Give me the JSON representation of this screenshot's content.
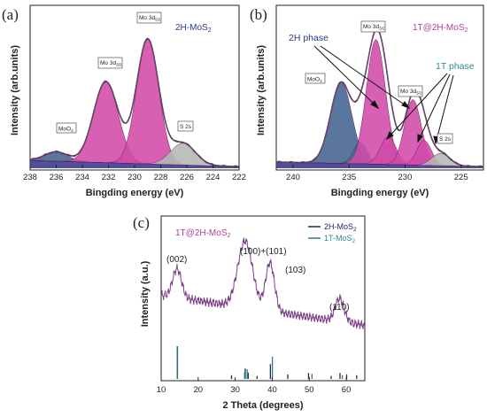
{
  "colors": {
    "curve": "#7f3f83",
    "mo3d_fill": "#d24aa8",
    "mo3d_edge": "#6a1d64",
    "s2s_fill": "#b3b8b3",
    "moo3_fill": "#44638f",
    "t1_fill": "#2d7893",
    "bg_fill": "#3b3b8f",
    "fit_line": "#444444",
    "xrd_curve": "#7c3f8a",
    "stick_2h": "#1a2a5a",
    "stick_1t": "#2f7d7d",
    "label_2h": "#1a2a6a",
    "label_1t": "#2f8a8a",
    "label_hybrid": "#b0409a"
  },
  "panels": {
    "a": {
      "letter": "(a)",
      "sample": "2H-MoS",
      "sample_sub": "2",
      "xlabel": "Bingding energy (eV)",
      "ylabel": "Intensity (arb.units)"
    },
    "b": {
      "letter": "(b)",
      "sample": "1T@2H-MoS",
      "sample_sub": "2",
      "xlabel": "Bingding energy (eV)",
      "ylabel": "Intensity (arb.units)",
      "phase_2h": "2H phase",
      "phase_1t": "1T phase"
    },
    "c": {
      "letter": "(c)",
      "sample": "1T@2H-MoS",
      "sample_sub": "2",
      "xlabel": "2 Theta (degrees)",
      "ylabel": "Intensity (a.u.)",
      "legend_2h": "2H-MoS",
      "legend_1t": "1T-MoS",
      "legend_sub": "2"
    }
  },
  "peak_labels": {
    "moo3": "MoO",
    "moo3_sub": "3",
    "mo3d32": "Mo 3d",
    "mo3d32_sub": "3/2",
    "mo3d52": "Mo 3d",
    "mo3d52_sub": "5/2",
    "s2s": "S 2s"
  },
  "chart_data": [
    {
      "panel": "a",
      "type": "area",
      "xlabel": "Bingding energy (eV)",
      "ylabel": "Intensity (arb.units)",
      "xlim": [
        238,
        222
      ],
      "xticks": [
        238,
        236,
        234,
        232,
        230,
        228,
        226,
        224,
        222
      ],
      "series": [
        {
          "name": "MoO3",
          "center": 236.0,
          "height": 0.06,
          "width": 0.9
        },
        {
          "name": "Mo 3d3/2",
          "center": 232.2,
          "height": 0.52,
          "width": 0.95
        },
        {
          "name": "Mo 3d5/2",
          "center": 229.0,
          "height": 0.8,
          "width": 0.85
        },
        {
          "name": "S 2s",
          "center": 226.3,
          "height": 0.14,
          "width": 0.95
        }
      ],
      "background": {
        "start": 0.05,
        "end": 0.01
      }
    },
    {
      "panel": "b",
      "type": "area",
      "xlabel": "Bingding energy (eV)",
      "ylabel": "Intensity (arb.units)",
      "xlim": [
        241.5,
        223
      ],
      "xticks": [
        240,
        235,
        230,
        225
      ],
      "series": [
        {
          "name": "MoO3",
          "phase": "",
          "center": 235.7,
          "height": 0.52,
          "width": 0.95
        },
        {
          "name": "MoO3 shoulder",
          "phase": "",
          "center": 234.0,
          "height": 0.14,
          "width": 0.6
        },
        {
          "name": "Mo 3d3/2",
          "phase": "2H",
          "center": 232.6,
          "height": 0.8,
          "width": 0.85
        },
        {
          "name": "Mo 3d3/2",
          "phase": "1T",
          "center": 231.5,
          "height": 0.18,
          "width": 0.7
        },
        {
          "name": "Mo 3d5/2",
          "phase": "2H",
          "center": 229.3,
          "height": 0.42,
          "width": 0.75
        },
        {
          "name": "Mo 3d5/2",
          "phase": "1T",
          "center": 228.3,
          "height": 0.16,
          "width": 0.65
        },
        {
          "name": "S 2s",
          "phase": "",
          "center": 226.8,
          "height": 0.08,
          "width": 0.8
        }
      ],
      "background": {
        "start": 0.04,
        "end": 0.01
      }
    },
    {
      "panel": "c",
      "type": "line",
      "xlabel": "2 Theta (degrees)",
      "ylabel": "Intensity (a.u.)",
      "xlim": [
        10,
        65
      ],
      "xticks": [
        10,
        20,
        30,
        40,
        50,
        60
      ],
      "series": [
        {
          "name": "1T@2H-MoS2",
          "peaks": [
            {
              "label": "(002)",
              "center": 14.3,
              "height": 0.25
            },
            {
              "label": "(100)+(101)",
              "center": 32.7,
              "height": 0.58
            },
            {
              "label": "(103)",
              "center": 39.4,
              "height": 0.42
            },
            {
              "label": "(110)",
              "center": 58.2,
              "height": 0.2
            }
          ]
        },
        {
          "name": "2H-MoS2",
          "sticks": [
            [
              14.4,
              0.88
            ],
            [
              29.0,
              0.1
            ],
            [
              32.7,
              0.28
            ],
            [
              33.5,
              0.17
            ],
            [
              35.9,
              0.08
            ],
            [
              39.5,
              0.4
            ],
            [
              44.2,
              0.12
            ],
            [
              49.8,
              0.16
            ],
            [
              55.9,
              0.08
            ],
            [
              58.3,
              0.16
            ],
            [
              60.1,
              0.12
            ],
            [
              62.8,
              0.1
            ]
          ]
        },
        {
          "name": "1T-MoS2",
          "sticks": [
            [
              14.1,
              0.88
            ],
            [
              32.3,
              0.18
            ],
            [
              33.0,
              0.26
            ],
            [
              39.8,
              0.6
            ],
            [
              50.5,
              0.14
            ],
            [
              58.7,
              0.1
            ]
          ]
        }
      ]
    }
  ]
}
